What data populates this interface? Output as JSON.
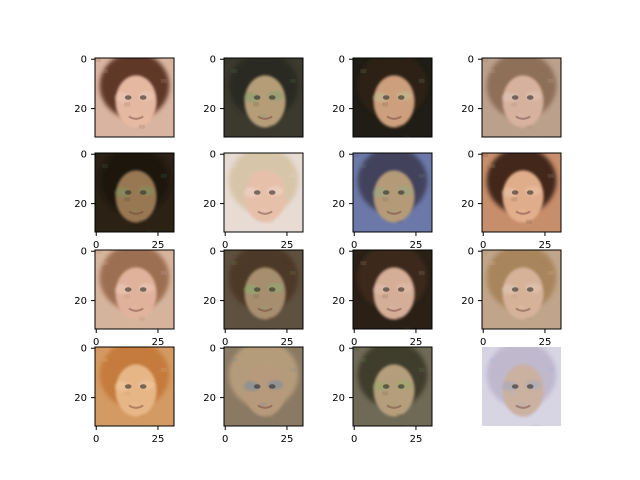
{
  "figure": {
    "rows": 4,
    "cols": 4,
    "x_tick_labels": [
      "0",
      "25"
    ],
    "y_tick_labels": [
      "0",
      "20"
    ],
    "panels": [
      {
        "id": "r1c1",
        "subject": "generated face, dark brown hair, light skin",
        "colors": {
          "bg": "#d9b4a0",
          "hair": "#5a3322",
          "skin": "#e8bba4",
          "accent": "#f0d7c8"
        },
        "show_xaxis": false,
        "show_yaxis": true,
        "frame": true
      },
      {
        "id": "r1c2",
        "subject": "generated face, dark hair, greenish artifacts",
        "colors": {
          "bg": "#3c3a2f",
          "hair": "#2a2a24",
          "skin": "#b8a07a",
          "accent": "#6aa36a"
        },
        "show_xaxis": false,
        "show_yaxis": true,
        "frame": true
      },
      {
        "id": "r1c3",
        "subject": "generated face, smiling, dark hair",
        "colors": {
          "bg": "#1f1d15",
          "hair": "#2d2414",
          "skin": "#d1a27f",
          "accent": "#b5d1a3"
        },
        "show_xaxis": false,
        "show_yaxis": true,
        "frame": true
      },
      {
        "id": "r1c4",
        "subject": "generated face, light brown hair, noisy",
        "colors": {
          "bg": "#bba08c",
          "hair": "#8c6d56",
          "skin": "#d8b3a0",
          "accent": "#e9d1c5"
        },
        "show_xaxis": false,
        "show_yaxis": true,
        "frame": true
      },
      {
        "id": "r2c1",
        "subject": "generated face, dark background, distorted",
        "colors": {
          "bg": "#2b2115",
          "hair": "#1e150c",
          "skin": "#9b7a55",
          "accent": "#6fa36a"
        },
        "show_xaxis": true,
        "show_yaxis": true,
        "frame": true
      },
      {
        "id": "r2c2",
        "subject": "generated face, blonde hair",
        "colors": {
          "bg": "#e7dbd3",
          "hair": "#d7c4a8",
          "skin": "#e8c0aa",
          "accent": "#f1e6df"
        },
        "show_xaxis": true,
        "show_yaxis": true,
        "frame": true
      },
      {
        "id": "r2c3",
        "subject": "generated face, colorful artifacts",
        "colors": {
          "bg": "#6c79a8",
          "hair": "#3f4058",
          "skin": "#b79c78",
          "accent": "#86b38b"
        },
        "show_xaxis": true,
        "show_yaxis": true,
        "frame": true
      },
      {
        "id": "r2c4",
        "subject": "generated face, warm tones, blurry",
        "colors": {
          "bg": "#c78e6c",
          "hair": "#3b2416",
          "skin": "#e4b08d",
          "accent": "#efd2bd"
        },
        "show_xaxis": true,
        "show_yaxis": true,
        "frame": true
      },
      {
        "id": "r3c1",
        "subject": "generated face, light brown hair",
        "colors": {
          "bg": "#d6b49c",
          "hair": "#9b6c4f",
          "skin": "#e2b49d",
          "accent": "#f2d9ca"
        },
        "show_xaxis": true,
        "show_yaxis": true,
        "frame": true
      },
      {
        "id": "r3c2",
        "subject": "generated face, long brown hair, green tint",
        "colors": {
          "bg": "#5f513f",
          "hair": "#4d3827",
          "skin": "#a89071",
          "accent": "#7bbf6e"
        },
        "show_xaxis": true,
        "show_yaxis": true,
        "frame": true
      },
      {
        "id": "r3c3",
        "subject": "generated face, dark hair, pale skin",
        "colors": {
          "bg": "#2a2016",
          "hair": "#3d2b1d",
          "skin": "#d9b19a",
          "accent": "#e8cbbb"
        },
        "show_xaxis": true,
        "show_yaxis": true,
        "frame": true
      },
      {
        "id": "r3c4",
        "subject": "generated face, blonde hair",
        "colors": {
          "bg": "#c0a58a",
          "hair": "#a7845a",
          "skin": "#d7b39b",
          "accent": "#ebd8c8"
        },
        "show_xaxis": true,
        "show_yaxis": true,
        "frame": true
      },
      {
        "id": "r4c1",
        "subject": "generated face, orange hair",
        "colors": {
          "bg": "#d49a63",
          "hair": "#c47a3a",
          "skin": "#e8b889",
          "accent": "#f4d7b3"
        },
        "show_xaxis": true,
        "show_yaxis": true,
        "frame": true
      },
      {
        "id": "r4c2",
        "subject": "generated face, very blurry, blonde",
        "colors": {
          "bg": "#8b7a63",
          "hair": "#b79e7b",
          "skin": "#b89a7b",
          "accent": "#4f86c0"
        },
        "show_xaxis": true,
        "show_yaxis": true,
        "frame": true
      },
      {
        "id": "r4c3",
        "subject": "generated face, glasses-like artifacts",
        "colors": {
          "bg": "#6e6a56",
          "hair": "#3d3a2a",
          "skin": "#b8a07e",
          "accent": "#86b35f"
        },
        "show_xaxis": true,
        "show_yaxis": true,
        "frame": true
      },
      {
        "id": "r4c4",
        "subject": "generated face, noisy, pale blue tones",
        "colors": {
          "bg": "#d7d4e4",
          "hair": "#bfb7cc",
          "skin": "#cbb1a0",
          "accent": "#8da7d6"
        },
        "show_xaxis": false,
        "show_yaxis": false,
        "frame": false
      }
    ]
  }
}
